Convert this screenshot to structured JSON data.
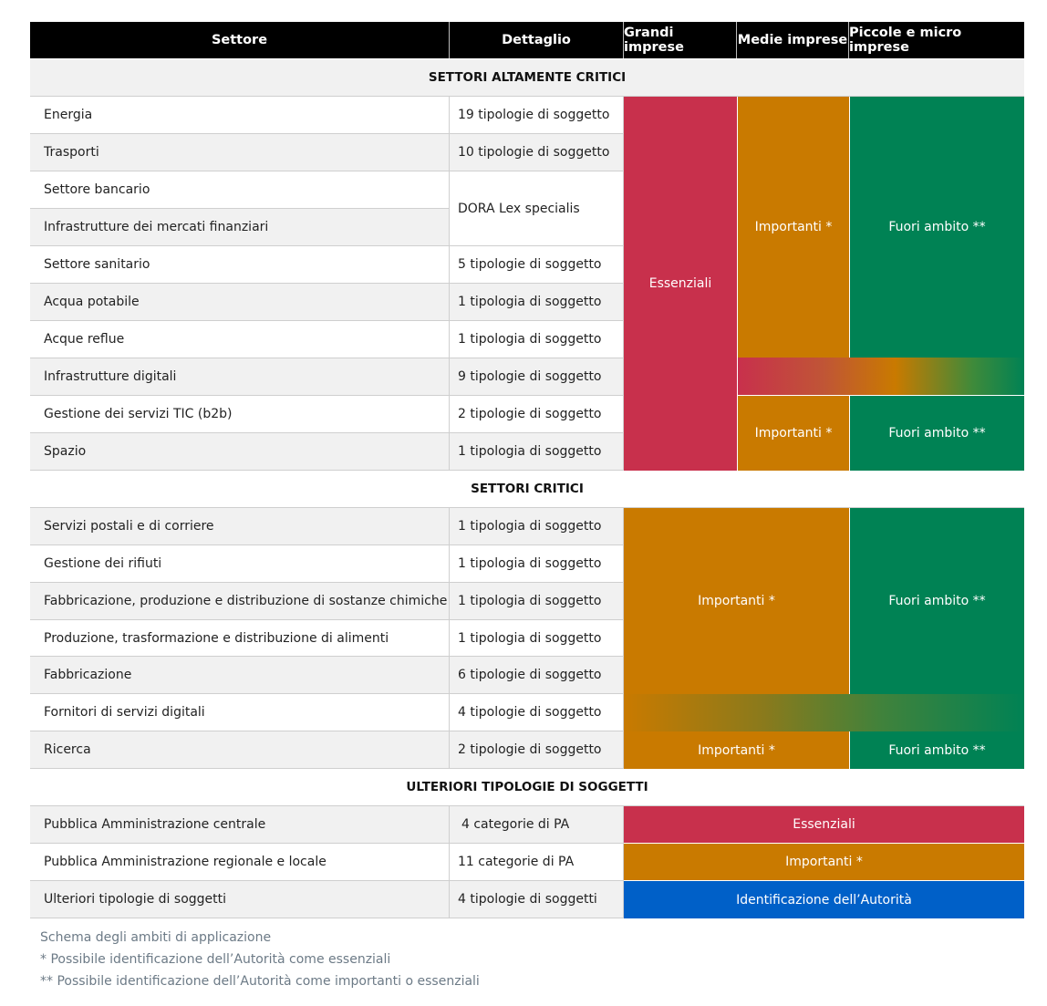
{
  "table": {
    "headers": {
      "settore": "Settore",
      "dettaglio": "Dettaglio",
      "grandi": "Grandi imprese",
      "medie": "Medie imprese",
      "piccole": "Piccole e micro imprese"
    },
    "sections": {
      "altamente_critici": "SETTORI ALTAMENTE CRITICI",
      "critici": "SETTORI CRITICI",
      "ulteriori": "ULTERIORI TIPOLOGIE DI SOGGETTI"
    },
    "rows_altamente_critici": [
      {
        "settore": "Energia",
        "dettaglio": "19 tipologie di soggetto"
      },
      {
        "settore": "Trasporti",
        "dettaglio": "10 tipologie di soggetto"
      },
      {
        "settore": "Settore bancario",
        "dettaglio": ""
      },
      {
        "settore": "Infrastrutture dei mercati finanziari",
        "dettaglio": ""
      },
      {
        "settore": "Settore sanitario",
        "dettaglio": "5 tipologie di soggetto"
      },
      {
        "settore": "Acqua potabile",
        "dettaglio": "1 tipologia di soggetto"
      },
      {
        "settore": "Acque reflue",
        "dettaglio": "1 tipologia di soggetto"
      },
      {
        "settore": "Infrastrutture digitali",
        "dettaglio": "9 tipologie di soggetto"
      },
      {
        "settore": "Gestione dei servizi TIC (b2b)",
        "dettaglio": "2 tipologie di soggetto"
      },
      {
        "settore": "Spazio",
        "dettaglio": "1 tipologia di soggetto"
      }
    ],
    "dora": "DORA Lex specialis",
    "rows_critici": [
      {
        "settore": "Servizi postali e di corriere",
        "dettaglio": "1 tipologia di soggetto"
      },
      {
        "settore": "Gestione dei rifiuti",
        "dettaglio": "1 tipologia di soggetto"
      },
      {
        "settore": "Fabbricazione, produzione e distribuzione di sostanze chimiche",
        "dettaglio": "1 tipologia di soggetto"
      },
      {
        "settore": "Produzione, trasformazione e distribuzione di alimenti",
        "dettaglio": "1 tipologia di soggetto"
      },
      {
        "settore": "Fabbricazione",
        "dettaglio": "6 tipologie di soggetto"
      },
      {
        "settore": "Fornitori di servizi digitali",
        "dettaglio": "4 tipologie di soggetto"
      },
      {
        "settore": "Ricerca",
        "dettaglio": "2 tipologie di soggetto"
      }
    ],
    "rows_ulteriori": [
      {
        "settore": "Pubblica Amministrazione centrale",
        "dettaglio": "4 categorie di PA"
      },
      {
        "settore": "Pubblica Amministrazione regionale e locale",
        "dettaglio": "11 categorie di PA"
      },
      {
        "settore": "Ulteriori tipologie di soggetti",
        "dettaglio": "4 tipologie di soggetti"
      }
    ],
    "labels": {
      "essenziali": "Essenziali",
      "importanti": "Importanti *",
      "fuori_ambito": "Fuori ambito **",
      "identificazione": "Identificazione dell’Autorità"
    },
    "colors": {
      "essenziali": "#c8304c",
      "importanti": "#c97a00",
      "fuori_ambito": "#008254",
      "identificazione": "#0060c8"
    }
  },
  "notes": {
    "caption": "Schema degli ambiti di applicazione",
    "note1": "* Possibile identificazione dell’Autorità come essenziali",
    "note2": "** Possibile identificazione dell’Autorità come importanti o essenziali"
  }
}
